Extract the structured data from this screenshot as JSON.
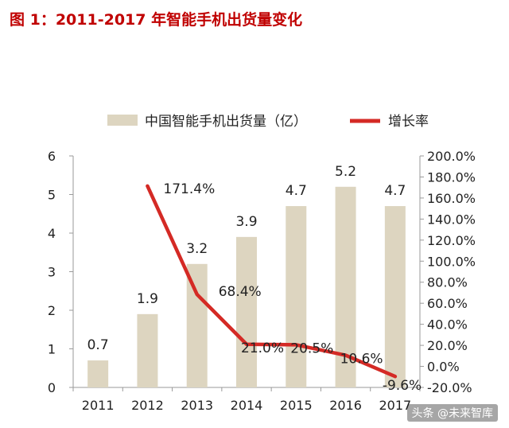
{
  "title": "图 1：2011-2017 年智能手机出货量变化",
  "watermark": "头条 @未来智库",
  "chart_data": {
    "type": "bar",
    "categories": [
      "2011",
      "2012",
      "2013",
      "2014",
      "2015",
      "2016",
      "2017"
    ],
    "series": [
      {
        "name": "中国智能手机出货量（亿）",
        "type": "bar",
        "axis": "left",
        "values": [
          0.7,
          1.9,
          3.2,
          3.9,
          4.7,
          5.2,
          4.7
        ],
        "labels": [
          "0.7",
          "1.9",
          "3.2",
          "3.9",
          "4.7",
          "5.2",
          "4.7"
        ],
        "color": "#ddd5c0"
      },
      {
        "name": "增长率",
        "type": "line",
        "axis": "right",
        "values": [
          null,
          171.4,
          68.4,
          21.0,
          20.5,
          10.6,
          -9.6
        ],
        "labels": [
          "",
          "171.4%",
          "68.4%",
          "21.0%",
          "20.5%",
          "10.6%",
          "-9.6%"
        ],
        "color": "#d42a25"
      }
    ],
    "y_left": {
      "min": 0,
      "max": 6,
      "ticks": [
        "0",
        "1",
        "2",
        "3",
        "4",
        "5",
        "6"
      ]
    },
    "y_right": {
      "min": -20,
      "max": 200,
      "ticks": [
        "-20.0%",
        "0.0%",
        "20.0%",
        "40.0%",
        "60.0%",
        "80.0%",
        "100.0%",
        "120.0%",
        "140.0%",
        "160.0%",
        "180.0%",
        "200.0%"
      ]
    },
    "legend_position": "top",
    "grid": false
  }
}
